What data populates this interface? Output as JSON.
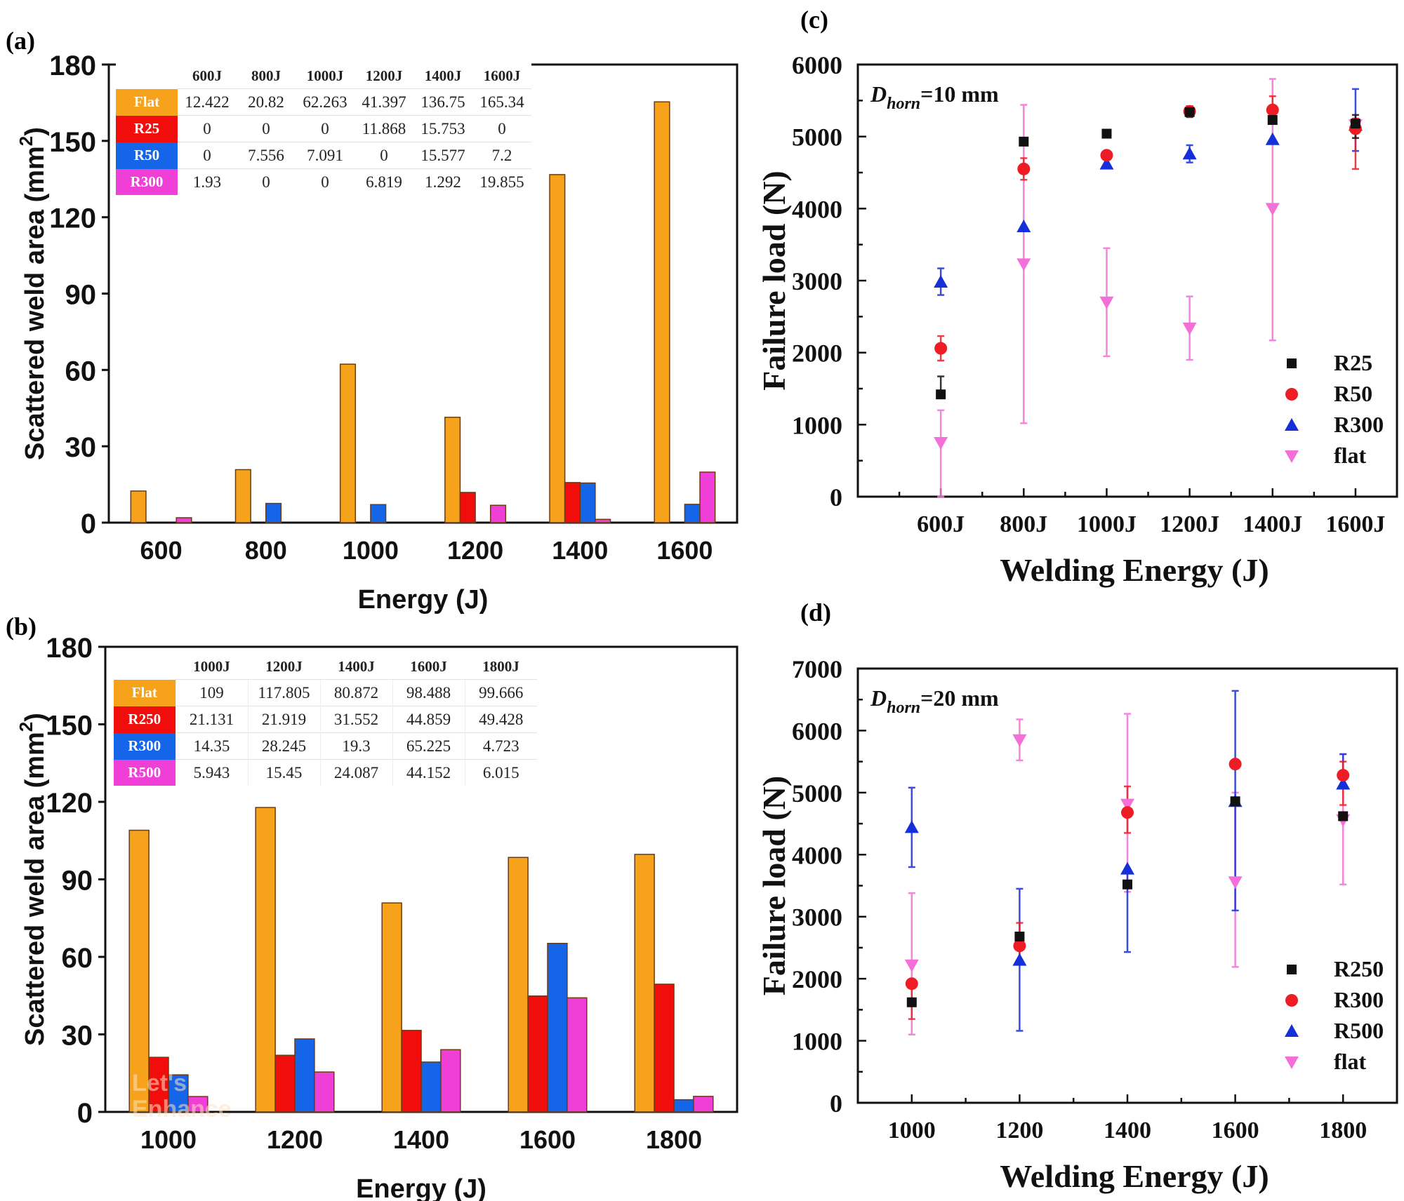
{
  "figure": {
    "panels": {
      "a": "(a)",
      "b": "(b)",
      "c": "(c)",
      "d": "(d)"
    },
    "watermark": [
      "Let's",
      "Enhance"
    ]
  },
  "series_colors": {
    "flat_bar": "#F7A21B",
    "r_small_bar": "#F20D0D",
    "r_mid_bar": "#1565E8",
    "r_large_bar": "#F03FD6",
    "scatter_black": "#111111",
    "scatter_red": "#EE1C25",
    "scatter_blue": "#1530D8",
    "scatter_pink": "#F56FD9"
  },
  "chart_data": [
    {
      "id": "a",
      "type": "bar",
      "panel_label": "(a)",
      "xlabel": "Energy (J)",
      "ylabel": "Scattered weld area (mm²)",
      "ylabel_main": "Scattered weld area (mm",
      "ylabel_sup": "2",
      "ylabel_end": ")",
      "categories": [
        "600",
        "800",
        "1000",
        "1200",
        "1400",
        "1600"
      ],
      "ylim": [
        0,
        180
      ],
      "yticks": [
        0,
        30,
        60,
        90,
        120,
        150,
        180
      ],
      "grid": false,
      "series": [
        {
          "name": "Flat",
          "values": [
            12.422,
            20.82,
            62.263,
            41.397,
            136.75,
            165.34
          ]
        },
        {
          "name": "R25",
          "values": [
            0,
            0,
            0,
            11.868,
            15.753,
            0
          ]
        },
        {
          "name": "R50",
          "values": [
            0,
            7.556,
            7.091,
            0,
            15.577,
            7.2
          ]
        },
        {
          "name": "R300",
          "values": [
            1.93,
            0,
            0,
            6.819,
            1.292,
            19.855
          ]
        }
      ],
      "table": {
        "columns": [
          "600J",
          "800J",
          "1000J",
          "1200J",
          "1400J",
          "1600J"
        ],
        "rows": [
          {
            "label": "Flat",
            "cells": [
              "12.422",
              "20.82",
              "62.263",
              "41.397",
              "136.75",
              "165.34"
            ]
          },
          {
            "label": "R25",
            "cells": [
              "0",
              "0",
              "0",
              "11.868",
              "15.753",
              "0"
            ]
          },
          {
            "label": "R50",
            "cells": [
              "0",
              "7.556",
              "7.091",
              "0",
              "15.577",
              "7.2"
            ]
          },
          {
            "label": "R300",
            "cells": [
              "1.93",
              "0",
              "0",
              "6.819",
              "1.292",
              "19.855"
            ]
          }
        ]
      }
    },
    {
      "id": "b",
      "type": "bar",
      "panel_label": "(b)",
      "xlabel": "Energy (J)",
      "ylabel": "Scattered weld area (mm²)",
      "ylabel_main": "Scattered weld area (mm",
      "ylabel_sup": "2",
      "ylabel_end": ")",
      "categories": [
        "1000",
        "1200",
        "1400",
        "1600",
        "1800"
      ],
      "ylim": [
        0,
        180
      ],
      "yticks": [
        0,
        30,
        60,
        90,
        120,
        150,
        180
      ],
      "grid": false,
      "series": [
        {
          "name": "Flat",
          "values": [
            109,
            117.805,
            80.872,
            98.488,
            99.666
          ]
        },
        {
          "name": "R250",
          "values": [
            21.131,
            21.919,
            31.552,
            44.859,
            49.428
          ]
        },
        {
          "name": "R300",
          "values": [
            14.35,
            28.245,
            19.3,
            65.225,
            4.723
          ]
        },
        {
          "name": "R500",
          "values": [
            5.943,
            15.45,
            24.087,
            44.152,
            6.015
          ]
        }
      ],
      "table": {
        "columns": [
          "1000J",
          "1200J",
          "1400J",
          "1600J",
          "1800J"
        ],
        "rows": [
          {
            "label": "Flat",
            "cells": [
              "109",
              "117.805",
              "80.872",
              "98.488",
              "99.666"
            ]
          },
          {
            "label": "R250",
            "cells": [
              "21.131",
              "21.919",
              "31.552",
              "44.859",
              "49.428"
            ]
          },
          {
            "label": "R300",
            "cells": [
              "14.35",
              "28.245",
              "19.3",
              "65.225",
              "4.723"
            ]
          },
          {
            "label": "R500",
            "cells": [
              "5.943",
              "15.45",
              "24.087",
              "44.152",
              "6.015"
            ]
          }
        ]
      }
    },
    {
      "id": "c",
      "type": "scatter",
      "panel_label": "(c)",
      "annotation_main": "D",
      "annotation_sub": "horn",
      "annotation_rest": "=10 mm",
      "xlabel": "Welding Energy (J)",
      "ylabel": "Failure load (N)",
      "xlim": [
        400,
        1700
      ],
      "xticks": [
        600,
        800,
        1000,
        1200,
        1400,
        1600
      ],
      "xtick_labels": [
        "600J",
        "800J",
        "1000J",
        "1200J",
        "1400J",
        "1600J"
      ],
      "xminor_step": 100,
      "ylim": [
        0,
        6000
      ],
      "yticks": [
        0,
        1000,
        2000,
        3000,
        4000,
        5000,
        6000
      ],
      "yminor_step": 500,
      "legend": "right",
      "grid": false,
      "x": [
        600,
        800,
        1000,
        1200,
        1400,
        1600
      ],
      "series": [
        {
          "name": "R25",
          "marker": "square",
          "color": "#111111",
          "values": [
            1420,
            4930,
            5040,
            5340,
            5230,
            5180
          ],
          "err_low": [
            1420,
            4930,
            5040,
            5270,
            5230,
            4980
          ],
          "err_high": [
            1670,
            4930,
            5040,
            5420,
            5230,
            5300
          ]
        },
        {
          "name": "R50",
          "marker": "circle",
          "color": "#EE1C25",
          "values": [
            2060,
            4550,
            4740,
            5350,
            5370,
            5110
          ],
          "err_low": [
            1890,
            4400,
            4740,
            5290,
            5200,
            4550
          ],
          "err_high": [
            2230,
            4700,
            4740,
            5420,
            5560,
            5250
          ]
        },
        {
          "name": "R300",
          "marker": "triangle-up",
          "color": "#1530D8",
          "values": [
            2980,
            3750,
            4620,
            4760,
            4960,
            5160
          ],
          "err_low": [
            2800,
            3750,
            4620,
            4640,
            4960,
            4800
          ],
          "err_high": [
            3170,
            3750,
            4620,
            4880,
            4960,
            5660
          ]
        },
        {
          "name": "flat",
          "marker": "triangle-down",
          "color": "#F56FD9",
          "values": [
            750,
            3230,
            2700,
            2340,
            4000,
            5160
          ],
          "err_low": [
            0,
            1020,
            1950,
            1900,
            2170,
            5160
          ],
          "err_high": [
            1200,
            5440,
            3450,
            2780,
            5800,
            5160
          ]
        }
      ]
    },
    {
      "id": "d",
      "type": "scatter",
      "panel_label": "(d)",
      "annotation_main": "D",
      "annotation_sub": "horn",
      "annotation_rest": "=20 mm",
      "xlabel": "Welding Energy (J)",
      "ylabel": "Failure load (N)",
      "xlim": [
        900,
        1900
      ],
      "xticks": [
        1000,
        1200,
        1400,
        1600,
        1800
      ],
      "xtick_labels": [
        "1000",
        "1200",
        "1400",
        "1600",
        "1800"
      ],
      "xminor_step": 100,
      "ylim": [
        0,
        7000
      ],
      "yticks": [
        0,
        1000,
        2000,
        3000,
        4000,
        5000,
        6000,
        7000
      ],
      "yminor_step": 500,
      "legend": "right",
      "grid": false,
      "x": [
        1000,
        1200,
        1400,
        1600,
        1800
      ],
      "series": [
        {
          "name": "R250",
          "marker": "square",
          "color": "#111111",
          "values": [
            1620,
            2680,
            3520,
            4860,
            4620
          ],
          "err_low": [
            1620,
            2680,
            3520,
            4860,
            4620
          ],
          "err_high": [
            1620,
            2680,
            3520,
            4860,
            4620
          ]
        },
        {
          "name": "R300",
          "marker": "circle",
          "color": "#EE1C25",
          "values": [
            1920,
            2530,
            4680,
            5460,
            5280
          ],
          "err_low": [
            1350,
            2250,
            4350,
            5460,
            4800
          ],
          "err_high": [
            1920,
            2900,
            5100,
            5460,
            5500
          ]
        },
        {
          "name": "R500",
          "marker": "triangle-up",
          "color": "#1530D8",
          "values": [
            4440,
            2300,
            3770,
            4860,
            5140
          ],
          "err_low": [
            3800,
            1160,
            2430,
            3100,
            5140
          ],
          "err_high": [
            5080,
            3450,
            3770,
            6640,
            5620
          ]
        },
        {
          "name": "flat",
          "marker": "triangle-down",
          "color": "#F56FD9",
          "values": [
            2220,
            5850,
            4810,
            3560,
            4560
          ],
          "err_low": [
            1100,
            5520,
            3400,
            2190,
            3520
          ],
          "err_high": [
            3380,
            6180,
            6270,
            5000,
            5620
          ]
        }
      ]
    }
  ]
}
